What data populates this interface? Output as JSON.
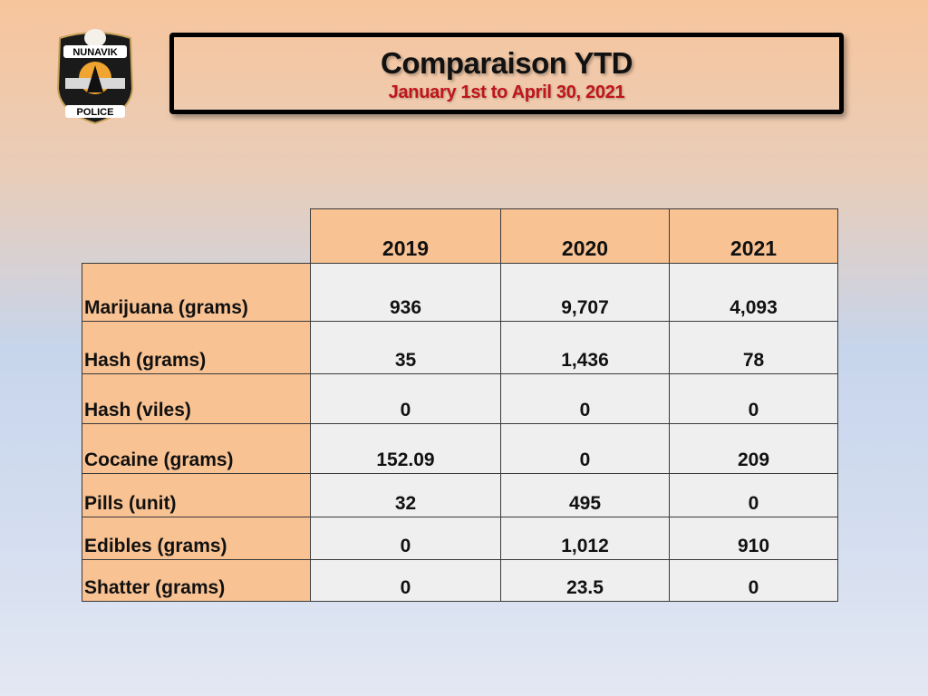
{
  "logo": {
    "top_text": "NUNAVIK",
    "bottom_text": "POLICE"
  },
  "header": {
    "title": "Comparaison YTD",
    "subtitle": "January 1st to April 30, 2021"
  },
  "table": {
    "columns": [
      "2019",
      "2020",
      "2021"
    ],
    "rows": [
      {
        "label": "Marijuana (grams)",
        "values": [
          "936",
          "9,707",
          "4,093"
        ]
      },
      {
        "label": "Hash (grams)",
        "values": [
          "35",
          "1,436",
          "78"
        ]
      },
      {
        "label": "Hash (viles)",
        "values": [
          "0",
          "0",
          "0"
        ]
      },
      {
        "label": "Cocaine (grams)",
        "values": [
          "152.09",
          "0",
          "209"
        ]
      },
      {
        "label": "Pills (unit)",
        "values": [
          "32",
          "495",
          "0"
        ]
      },
      {
        "label": "Edibles (grams)",
        "values": [
          "0",
          "1,012",
          "910"
        ]
      },
      {
        "label": "Shatter (grams)",
        "values": [
          "0",
          "23.5",
          "0"
        ]
      }
    ]
  }
}
